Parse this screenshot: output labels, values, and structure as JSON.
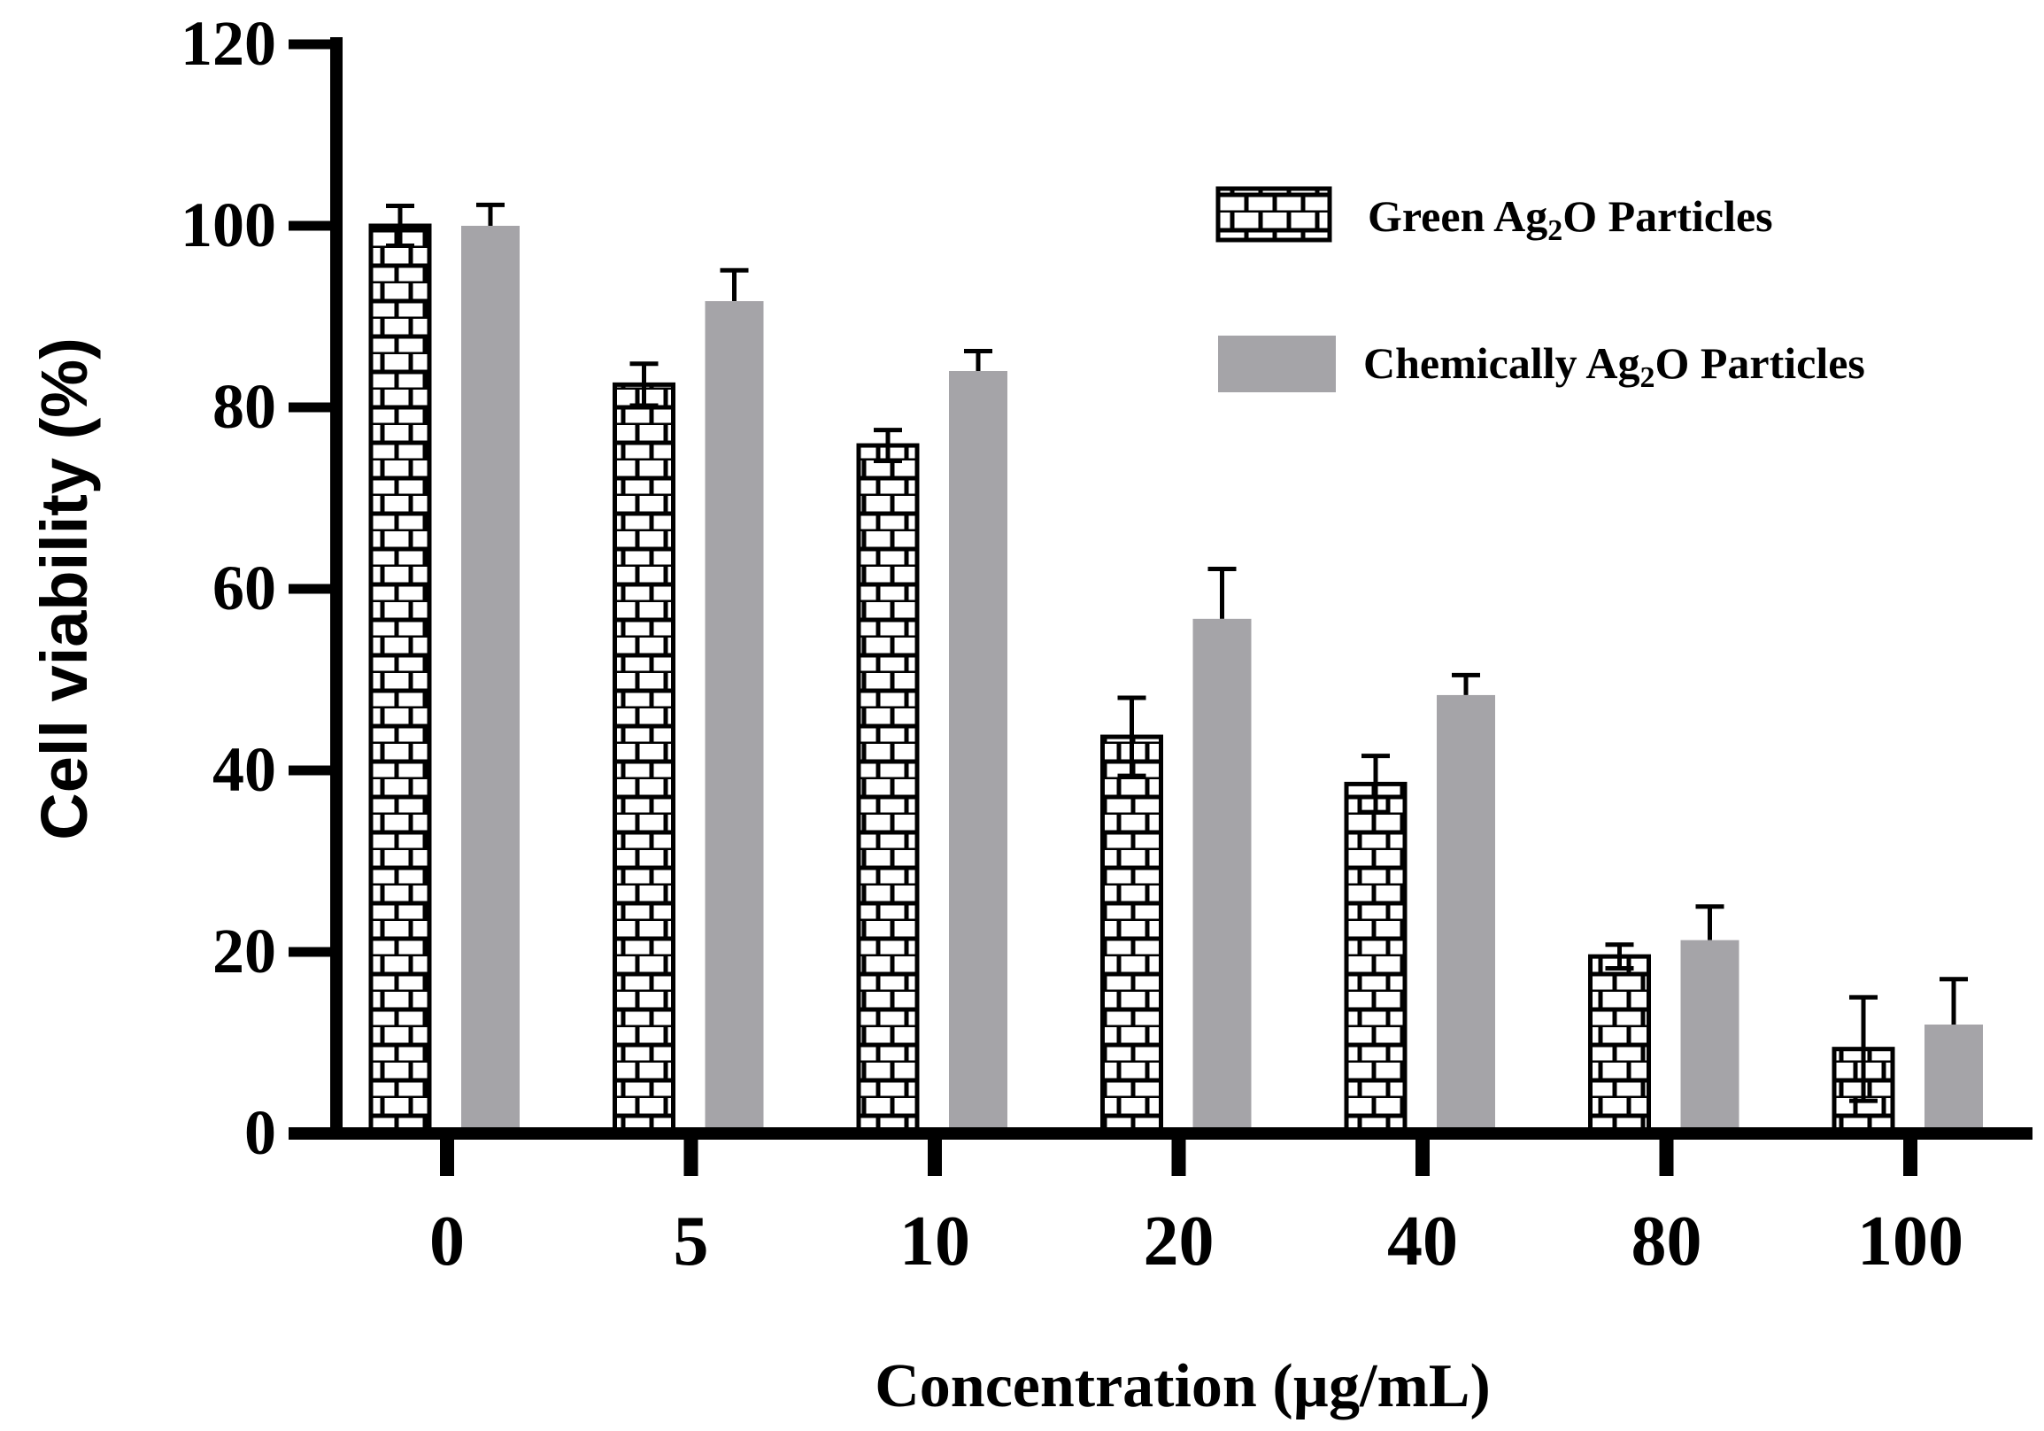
{
  "chart_data": {
    "type": "bar",
    "title": "",
    "xlabel": "Concentration (µg/mL)",
    "ylabel": "Cell viability (%)",
    "ylim": [
      0,
      120
    ],
    "yticks": [
      0,
      20,
      40,
      60,
      80,
      100,
      120
    ],
    "categories": [
      "0",
      "5",
      "10",
      "20",
      "40",
      "80",
      "100"
    ],
    "legend_position": "top-right",
    "grid": false,
    "series": [
      {
        "name": "Green Ag",
        "name_sub": "2",
        "name_suffix": "O Particles",
        "pattern": "brick",
        "color": "#ffffff",
        "stroke": "#000000",
        "values": [
          100,
          82.5,
          75.8,
          43.7,
          38.5,
          19.5,
          9.3
        ],
        "errors": [
          2.2,
          2.3,
          1.7,
          4.3,
          3.1,
          1.3,
          5.7
        ]
      },
      {
        "name": "Chemically Ag",
        "name_sub": "2",
        "name_suffix": "O Particles",
        "pattern": "solid",
        "color": "#a5a4a8",
        "stroke": "#a5a4a8",
        "values": [
          100,
          91.7,
          84.0,
          56.7,
          48.3,
          21.3,
          12.0
        ],
        "errors": [
          2.3,
          3.4,
          2.2,
          5.5,
          2.2,
          3.7,
          5.0
        ]
      }
    ]
  }
}
